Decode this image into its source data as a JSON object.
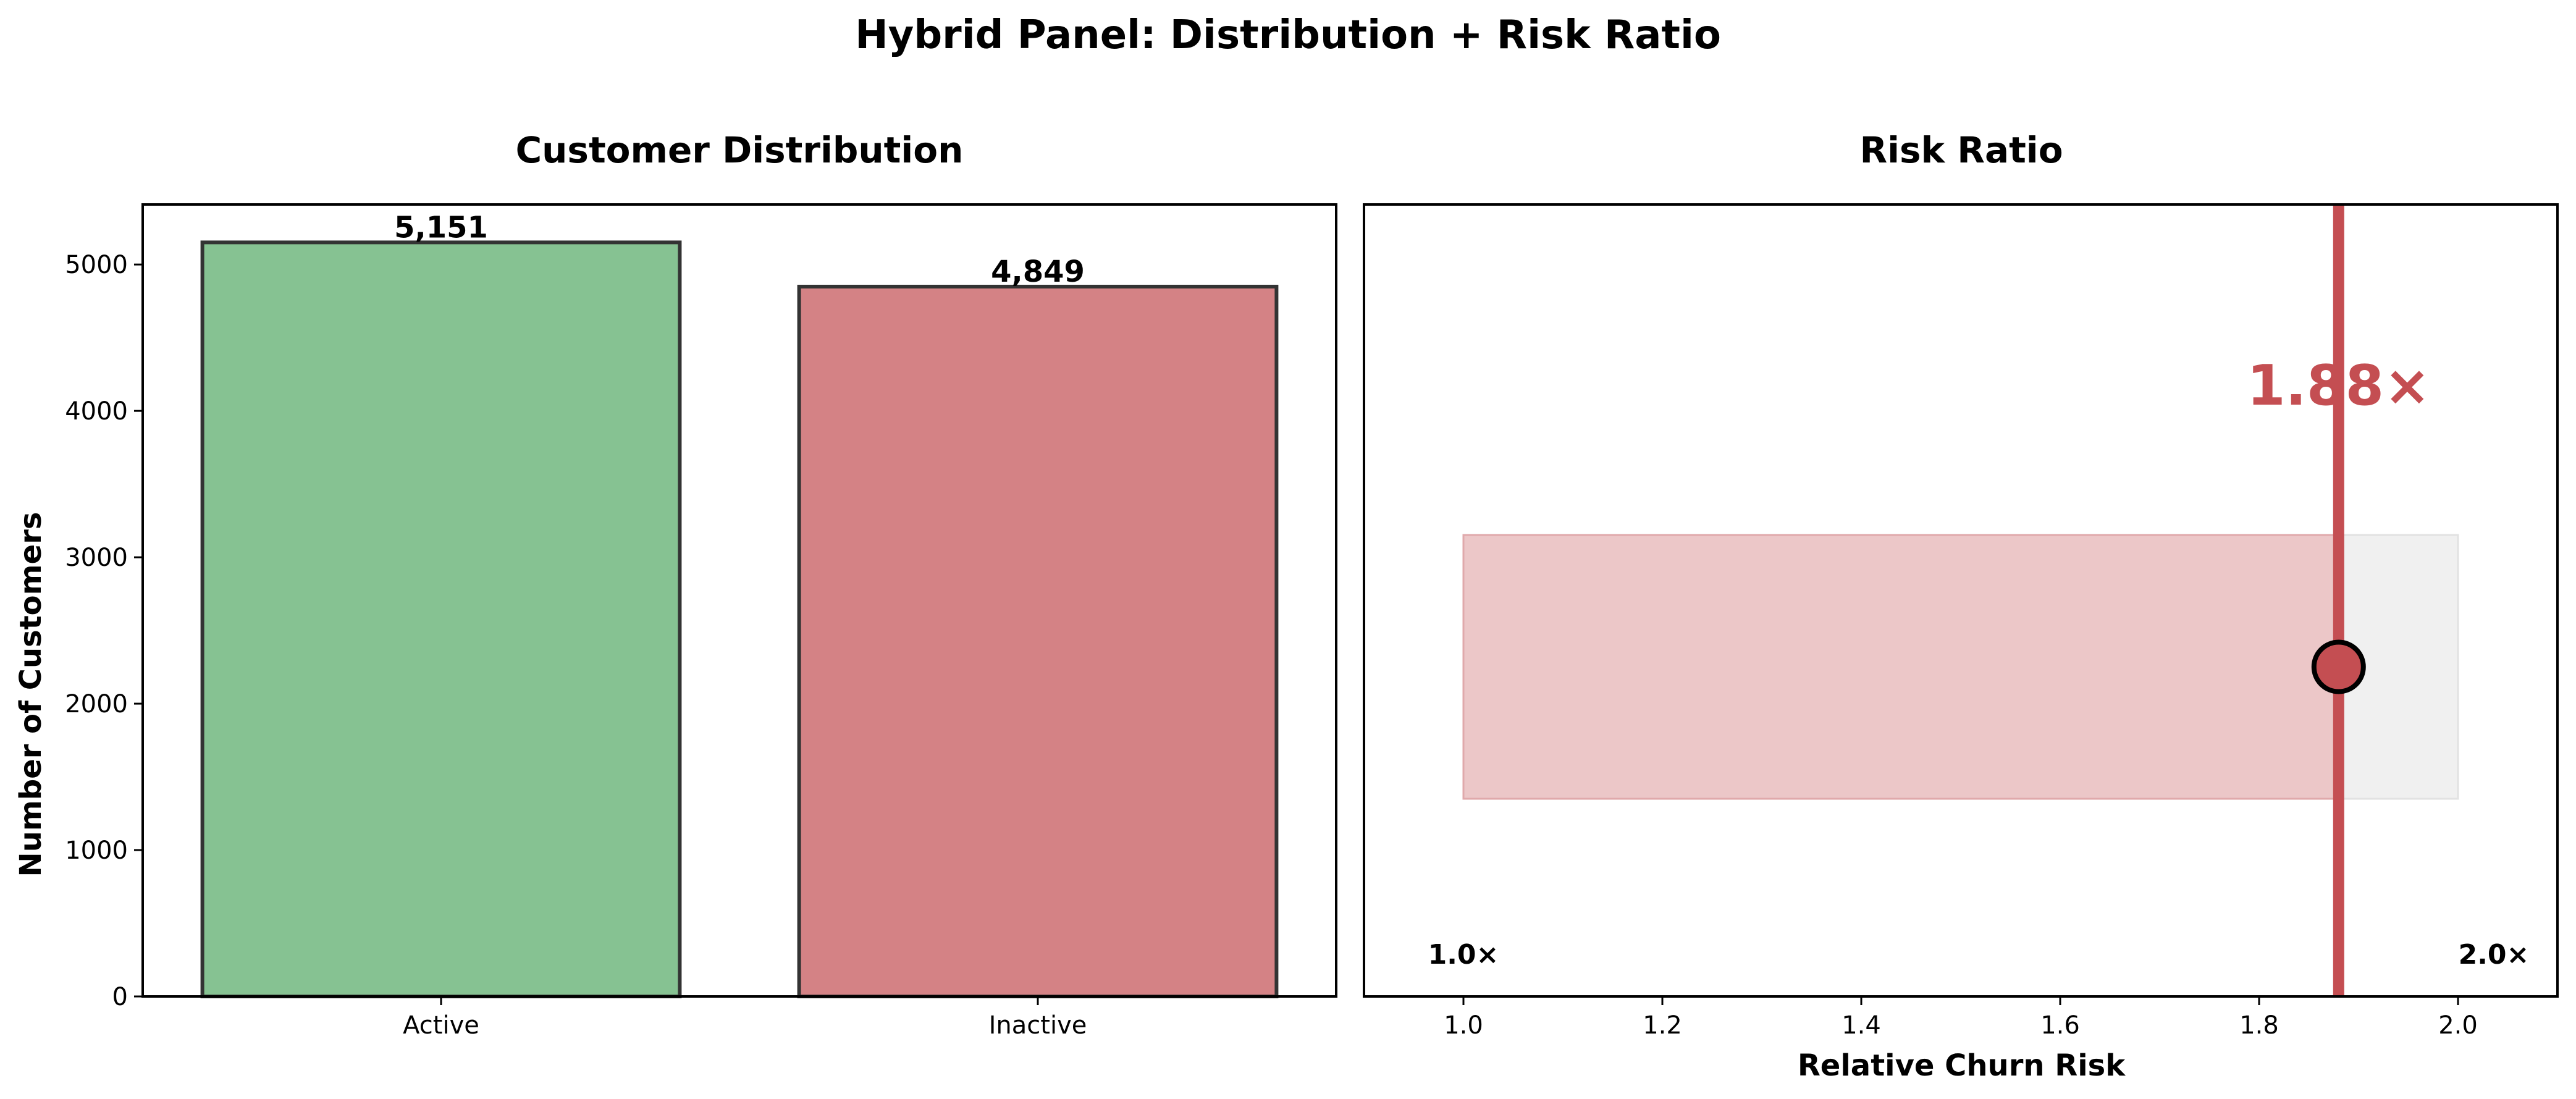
{
  "figure": {
    "title": "Hybrid Panel: Distribution + Risk Ratio"
  },
  "chart_data": [
    {
      "type": "bar",
      "title": "Customer Distribution",
      "xlabel": "",
      "ylabel": "Number of Customers",
      "categories": [
        "Active",
        "Inactive"
      ],
      "values": [
        5151,
        4849
      ],
      "value_labels": [
        "5,151",
        "4,849"
      ],
      "colors": [
        "#86c292",
        "#d48285"
      ],
      "edge_color": "#333333",
      "ylim": [
        0,
        5410
      ],
      "yticks": [
        0,
        1000,
        2000,
        3000,
        4000,
        5000
      ],
      "ytick_labels": [
        "0",
        "1000",
        "2000",
        "3000",
        "4000",
        "5000"
      ],
      "grid": false
    },
    {
      "type": "bar",
      "title": "Risk Ratio",
      "xlabel": "Relative Churn Risk",
      "ylabel": "",
      "xlim": [
        0.9,
        2.1
      ],
      "xticks": [
        1.0,
        1.2,
        1.4,
        1.6,
        1.8,
        2.0
      ],
      "xtick_labels": [
        "1.0",
        "1.2",
        "1.4",
        "1.6",
        "1.8",
        "2.0"
      ],
      "range": [
        1.0,
        2.0
      ],
      "value": 1.88,
      "value_label": "1.88×",
      "min_label": "1.0×",
      "max_label": "2.0×",
      "colors": {
        "accent": "#c44e52",
        "fill": "#ecc7c8",
        "background_bar": "#f0f0f0"
      },
      "grid": false
    }
  ]
}
